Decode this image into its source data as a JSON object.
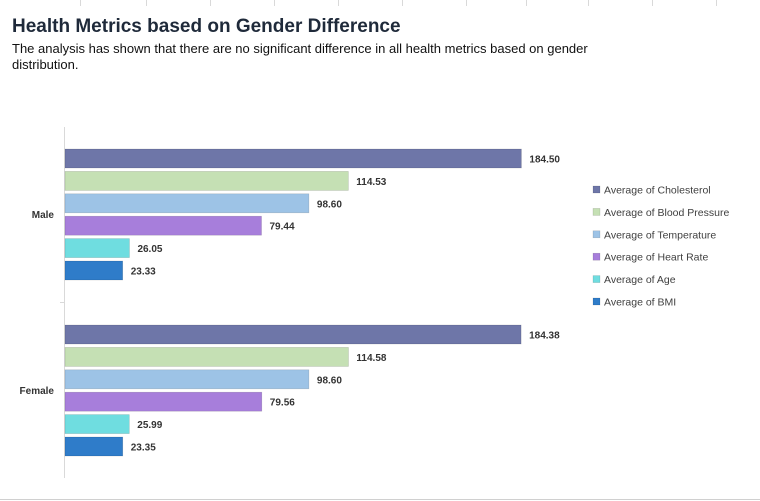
{
  "header": {
    "title": "Health Metrics based on Gender Difference",
    "subtitle": "The analysis has shown that there are no significant difference in all health metrics based on gender distribution."
  },
  "chart_data": {
    "type": "bar",
    "orientation": "horizontal",
    "categories": [
      "Male",
      "Female"
    ],
    "series": [
      {
        "name": "Average of Cholesterol",
        "values": [
          184.5,
          184.38
        ],
        "labels": [
          "184.50",
          "184.38"
        ],
        "color": "#6e76a8"
      },
      {
        "name": "Average of Blood Pressure",
        "values": [
          114.53,
          114.58
        ],
        "labels": [
          "114.53",
          "114.58"
        ],
        "color": "#c5e0b4"
      },
      {
        "name": "Average of Temperature",
        "values": [
          98.6,
          98.6
        ],
        "labels": [
          "98.60",
          "98.60"
        ],
        "color": "#9dc3e6"
      },
      {
        "name": "Average of Heart Rate",
        "values": [
          79.44,
          79.56
        ],
        "labels": [
          "79.44",
          "79.56"
        ],
        "color": "#a77edb"
      },
      {
        "name": "Average of Age",
        "values": [
          26.05,
          25.99
        ],
        "labels": [
          "26.05",
          "25.99"
        ],
        "color": "#6fdde0"
      },
      {
        "name": "Average of BMI",
        "values": [
          23.33,
          23.35
        ],
        "labels": [
          "23.33",
          "23.35"
        ],
        "color": "#2f7cc9"
      }
    ],
    "xlim": [
      0,
      190
    ],
    "grid": false,
    "legend": "right"
  }
}
